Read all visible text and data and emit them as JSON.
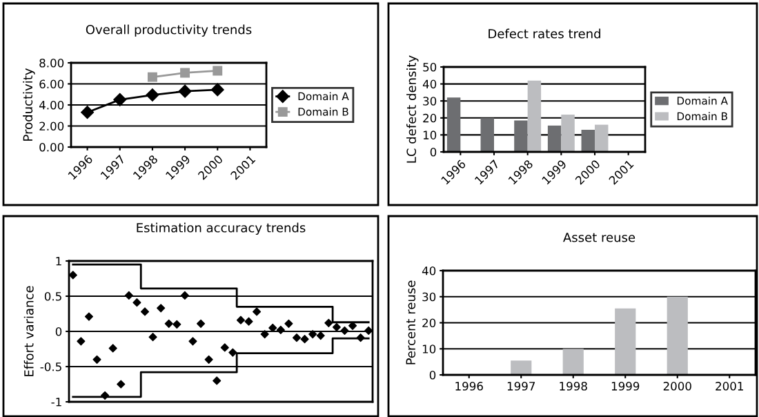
{
  "chart_data": [
    {
      "type": "line",
      "title": "Overall productivity trends",
      "ylabel": "Productivity",
      "categories": [
        "1996",
        "1997",
        "1998",
        "1999",
        "2000",
        "2001"
      ],
      "series": [
        {
          "name": "Domain A",
          "color": "#000000",
          "marker": "diamond",
          "values": [
            3.3,
            4.5,
            4.95,
            5.3,
            5.45,
            null
          ]
        },
        {
          "name": "Domain B",
          "color": "#999999",
          "marker": "square",
          "values": [
            null,
            null,
            6.65,
            7.05,
            7.25,
            null
          ]
        }
      ],
      "ylim": [
        0,
        8
      ],
      "yticks": [
        {
          "value": 0,
          "label": "0.00"
        },
        {
          "value": 2,
          "label": "2.00"
        },
        {
          "value": 4,
          "label": "4.00"
        },
        {
          "value": 6,
          "label": "6.00"
        },
        {
          "value": 8,
          "label": "8.00"
        }
      ],
      "grid": "y",
      "legend": "right"
    },
    {
      "type": "bar",
      "title": "Defect rates trend",
      "ylabel": "LC defect density",
      "categories": [
        "1996",
        "1997",
        "1998",
        "1999",
        "2000",
        "2001"
      ],
      "series": [
        {
          "name": "Domain A",
          "color": "#6d6e71",
          "values": [
            32,
            20,
            18.5,
            15.5,
            13,
            null
          ]
        },
        {
          "name": "Domain B",
          "color": "#bcbdc0",
          "values": [
            null,
            null,
            42,
            22,
            16,
            null
          ]
        }
      ],
      "ylim": [
        0,
        50
      ],
      "yticks": [
        0,
        10,
        20,
        30,
        40,
        50
      ],
      "grid": "y",
      "legend": "right"
    },
    {
      "type": "scatter",
      "title": "Estimation accuracy trends",
      "ylabel": "Effort variance",
      "categories": [
        null,
        null,
        null,
        null,
        null,
        null,
        null,
        null,
        null,
        null,
        null,
        null,
        null,
        null,
        null,
        null,
        null,
        null,
        null,
        null,
        null,
        null,
        null,
        null,
        null,
        null,
        null,
        null,
        null,
        null,
        null,
        null,
        null,
        null,
        null,
        null,
        null,
        null
      ],
      "series": [
        {
          "color": "#000000",
          "marker": "diamond",
          "values": [
            0.8,
            -0.14,
            0.21,
            -0.4,
            -0.91,
            -0.24,
            -0.75,
            0.51,
            0.41,
            0.28,
            -0.08,
            0.33,
            0.11,
            0.1,
            0.51,
            -0.14,
            0.11,
            -0.4,
            -0.7,
            -0.23,
            -0.3,
            0.16,
            0.14,
            0.28,
            -0.04,
            0.05,
            0.02,
            0.11,
            -0.09,
            -0.11,
            -0.04,
            -0.06,
            0.12,
            0.06,
            0.01,
            0.08,
            -0.09,
            0.01
          ]
        },
        {
          "type": "step",
          "color": "#000000",
          "values": [
            0.95,
            0.95,
            0.95,
            0.95,
            0.95,
            0.95,
            0.95,
            0.95,
            0.95,
            0.61,
            0.61,
            0.61,
            0.61,
            0.61,
            0.61,
            0.61,
            0.61,
            0.61,
            0.61,
            0.61,
            0.61,
            0.35,
            0.35,
            0.35,
            0.35,
            0.35,
            0.35,
            0.35,
            0.35,
            0.35,
            0.35,
            0.35,
            0.35,
            0.13,
            0.13,
            0.13,
            0.13,
            0.13
          ]
        },
        {
          "type": "step",
          "color": "#000000",
          "values": [
            -0.93,
            -0.93,
            -0.93,
            -0.93,
            -0.93,
            -0.93,
            -0.93,
            -0.93,
            -0.93,
            -0.58,
            -0.58,
            -0.58,
            -0.58,
            -0.58,
            -0.58,
            -0.58,
            -0.58,
            -0.58,
            -0.58,
            -0.58,
            -0.58,
            -0.31,
            -0.31,
            -0.31,
            -0.31,
            -0.31,
            -0.31,
            -0.31,
            -0.31,
            -0.31,
            -0.31,
            -0.31,
            -0.31,
            -0.1,
            -0.1,
            -0.1,
            -0.1,
            -0.1
          ]
        }
      ],
      "ylim": [
        -1,
        1
      ],
      "yticks": [
        -1,
        -0.5,
        0,
        0.5,
        1
      ],
      "tick_labels": "y",
      "grid": "y"
    },
    {
      "type": "bar",
      "title": "Asset reuse",
      "ylabel": "Percent reuse",
      "categories": [
        "1996",
        "1997",
        "1998",
        "1999",
        "2000",
        "2001"
      ],
      "series": [
        {
          "color": "#bcbdc0",
          "values": [
            null,
            5.5,
            10,
            25.5,
            30,
            null
          ]
        }
      ],
      "ylim": [
        0,
        40
      ],
      "yticks": [
        0,
        10,
        20,
        30,
        40
      ],
      "grid": "y"
    }
  ]
}
